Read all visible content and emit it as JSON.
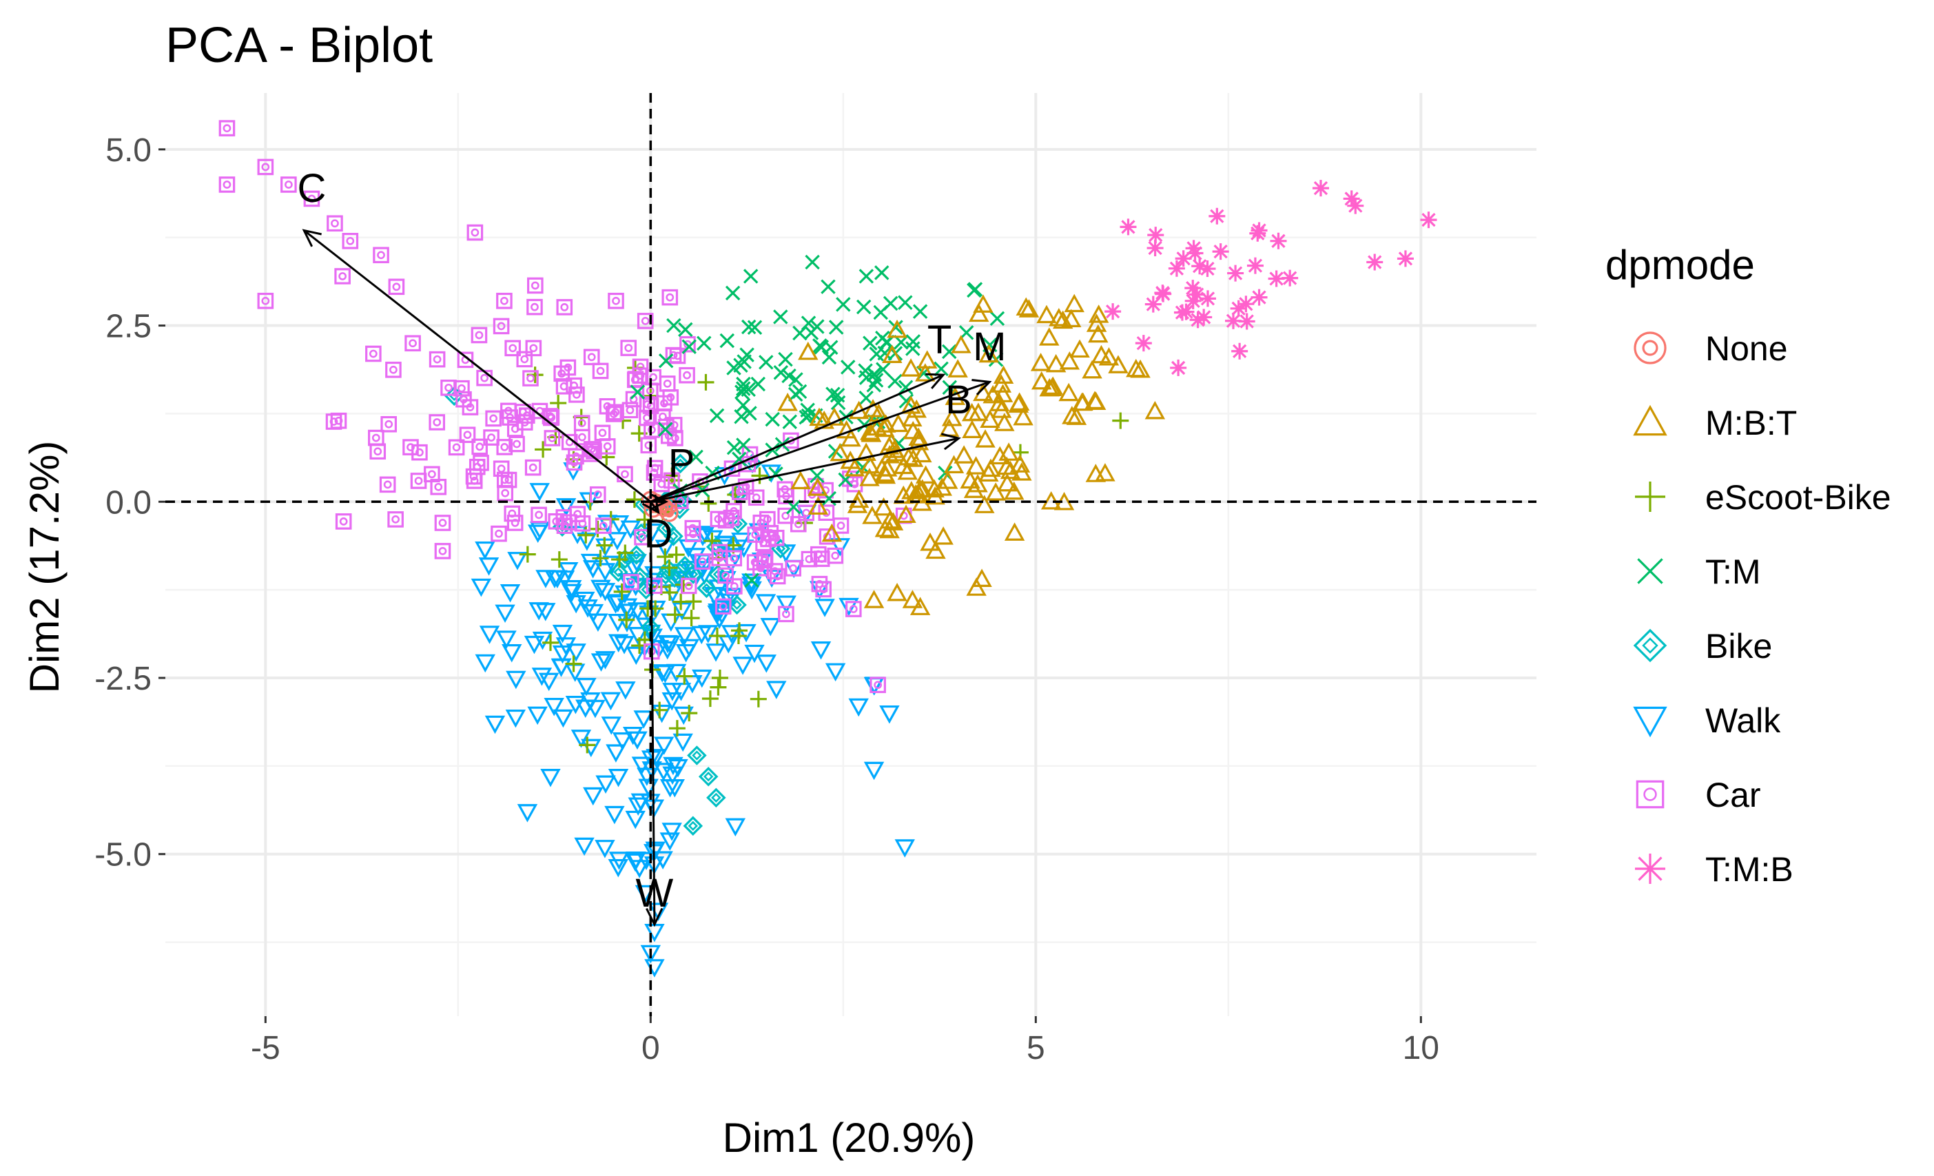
{
  "chart_data": {
    "type": "scatter",
    "subtype": "pca-biplot",
    "title": "PCA - Biplot",
    "xlabel": "Dim1 (20.9%)",
    "ylabel": "Dim2 (17.2%)",
    "xlim": [
      -6.3,
      11.5
    ],
    "ylim": [
      -7.3,
      5.8
    ],
    "xticks": [
      -5,
      0,
      5,
      10
    ],
    "xtick_labels": [
      "-5",
      "0",
      "5",
      "10"
    ],
    "yticks": [
      5.0,
      2.5,
      0.0,
      -2.5,
      -5.0
    ],
    "ytick_labels": [
      "5.0",
      "2.5",
      "0.0",
      "-2.5",
      "-5.0"
    ],
    "grid": true,
    "reference_lines": {
      "x": 0,
      "y": 0,
      "style": "dashed"
    },
    "legend": {
      "title": "dpmode",
      "position": "right",
      "entries": [
        {
          "label": "None",
          "color": "#F8766D",
          "shape": "circle-plus"
        },
        {
          "label": "M:B:T",
          "color": "#CD9600",
          "shape": "triangle"
        },
        {
          "label": "eScoot-Bike",
          "color": "#7CAE00",
          "shape": "plus"
        },
        {
          "label": "T:M",
          "color": "#00BE67",
          "shape": "cross"
        },
        {
          "label": "Bike",
          "color": "#00BFC4",
          "shape": "diamond"
        },
        {
          "label": "Walk",
          "color": "#00A9FF",
          "shape": "triangle-down"
        },
        {
          "label": "Car",
          "color": "#E76BF3",
          "shape": "square"
        },
        {
          "label": "T:M:B",
          "color": "#FF61CC",
          "shape": "asterisk"
        }
      ]
    },
    "loadings": [
      {
        "label": "C",
        "x": -4.5,
        "y": 3.85,
        "lx": -4.4,
        "ly": 4.45
      },
      {
        "label": "T",
        "x": 3.8,
        "y": 1.8,
        "lx": 3.75,
        "ly": 2.3
      },
      {
        "label": "M",
        "x": 4.4,
        "y": 1.7,
        "lx": 4.4,
        "ly": 2.2
      },
      {
        "label": "B",
        "x": 4.0,
        "y": 0.9,
        "lx": 4.0,
        "ly": 1.45
      },
      {
        "label": "P",
        "x": 0.2,
        "y": 0.0,
        "lx": 0.4,
        "ly": 0.55
      },
      {
        "label": "D",
        "x": 0.1,
        "y": -0.15,
        "lx": 0.1,
        "ly": -0.45
      },
      {
        "label": "W",
        "x": 0.05,
        "y": -6.0,
        "lx": 0.05,
        "ly": -5.55
      }
    ],
    "groups": [
      {
        "label": "None",
        "clusters": [
          {
            "cx": 0.1,
            "cy": -0.1,
            "sx": 0.08,
            "sy": 0.08,
            "n": 6
          }
        ],
        "points": []
      },
      {
        "label": "M:B:T",
        "clusters": [
          {
            "cx": 3.2,
            "cy": 0.5,
            "sx": 0.6,
            "sy": 0.6,
            "n": 60
          },
          {
            "cx": 4.4,
            "cy": 1.2,
            "sx": 0.9,
            "sy": 0.85,
            "n": 70
          },
          {
            "cx": 5.2,
            "cy": 2.1,
            "sx": 0.6,
            "sy": 0.5,
            "n": 20
          }
        ],
        "points": [
          [
            3.5,
            -1.5
          ],
          [
            3.4,
            -1.4
          ],
          [
            3.7,
            -0.7
          ],
          [
            4.3,
            -1.1
          ],
          [
            5.2,
            0.0
          ],
          [
            5.9,
            0.4
          ],
          [
            5.6,
            1.4
          ],
          [
            3.8,
            -0.5
          ],
          [
            5.5,
            2.8
          ],
          [
            5.3,
            2.6
          ],
          [
            2.9,
            -1.4
          ],
          [
            3.2,
            -1.3
          ]
        ]
      },
      {
        "label": "eScoot-Bike",
        "clusters": [
          {
            "cx": 0.0,
            "cy": -0.4,
            "sx": 0.8,
            "sy": 0.9,
            "n": 35
          },
          {
            "cx": 0.5,
            "cy": -1.9,
            "sx": 0.4,
            "sy": 0.5,
            "n": 18
          }
        ],
        "points": [
          [
            -1.5,
            1.8
          ],
          [
            -1.2,
            1.4
          ],
          [
            -0.9,
            1.2
          ],
          [
            -1.0,
            0.6
          ],
          [
            -1.3,
            -2.0
          ],
          [
            -1.0,
            -2.3
          ],
          [
            6.1,
            1.15
          ],
          [
            4.8,
            0.7
          ],
          [
            2.0,
            -0.3
          ],
          [
            1.4,
            -2.8
          ],
          [
            0.9,
            -2.5
          ],
          [
            0.5,
            -3.0
          ],
          [
            1.1,
            0.1
          ],
          [
            -0.2,
            1.9
          ],
          [
            0.0,
            1.5
          ]
        ]
      },
      {
        "label": "T:M",
        "clusters": [
          {
            "cx": 1.8,
            "cy": 1.5,
            "sx": 0.85,
            "sy": 0.65,
            "n": 75
          },
          {
            "cx": 3.0,
            "cy": 2.0,
            "sx": 0.6,
            "sy": 0.5,
            "n": 30
          }
        ],
        "points": [
          [
            2.1,
            3.4
          ],
          [
            1.3,
            3.2
          ],
          [
            2.8,
            3.2
          ],
          [
            3.0,
            3.25
          ],
          [
            4.2,
            3.0
          ],
          [
            4.5,
            2.6
          ],
          [
            0.3,
            2.5
          ],
          [
            0.5,
            2.2
          ],
          [
            0.2,
            2.0
          ],
          [
            2.5,
            2.8
          ],
          [
            3.5,
            2.7
          ],
          [
            4.1,
            2.4
          ]
        ]
      },
      {
        "label": "Bike",
        "clusters": [
          {
            "cx": 0.3,
            "cy": -0.5,
            "sx": 0.5,
            "sy": 0.6,
            "n": 30
          }
        ],
        "points": [
          [
            0.6,
            -3.6
          ],
          [
            0.75,
            -3.9
          ],
          [
            0.55,
            -4.6
          ],
          [
            0.85,
            -4.2
          ],
          [
            -2.55,
            1.5
          ]
        ]
      },
      {
        "label": "Walk",
        "clusters": [
          {
            "cx": -0.5,
            "cy": -1.8,
            "sx": 0.8,
            "sy": 0.9,
            "n": 120
          },
          {
            "cx": -0.1,
            "cy": -4.2,
            "sx": 0.35,
            "sy": 0.8,
            "n": 40
          },
          {
            "cx": 1.0,
            "cy": -1.2,
            "sx": 0.7,
            "sy": 0.7,
            "n": 60
          }
        ],
        "points": [
          [
            -1.6,
            -4.4
          ],
          [
            -1.3,
            -3.9
          ],
          [
            2.4,
            -2.4
          ],
          [
            2.9,
            -2.6
          ],
          [
            2.7,
            -2.9
          ],
          [
            3.1,
            -3.0
          ],
          [
            2.9,
            -3.8
          ],
          [
            3.3,
            -4.9
          ],
          [
            1.1,
            -4.6
          ],
          [
            -2.1,
            -0.9
          ],
          [
            -2.2,
            -1.2
          ],
          [
            0.0,
            -6.4
          ],
          [
            0.05,
            -6.1
          ],
          [
            -0.2,
            -5.1
          ],
          [
            0.1,
            -5.8
          ],
          [
            0.05,
            -6.6
          ]
        ]
      },
      {
        "label": "Car",
        "clusters": [
          {
            "cx": -1.8,
            "cy": 1.2,
            "sx": 1.1,
            "sy": 0.8,
            "n": 70
          },
          {
            "cx": 0.0,
            "cy": 1.3,
            "sx": 0.3,
            "sy": 0.6,
            "n": 25
          },
          {
            "cx": 1.6,
            "cy": -0.6,
            "sx": 0.7,
            "sy": 0.6,
            "n": 60
          },
          {
            "cx": -1.0,
            "cy": 0.4,
            "sx": 0.9,
            "sy": 0.5,
            "n": 30
          }
        ],
        "points": [
          [
            -5.5,
            5.3
          ],
          [
            -5.5,
            4.5
          ],
          [
            -5.0,
            4.75
          ],
          [
            -4.7,
            4.5
          ],
          [
            -4.4,
            4.3
          ],
          [
            -4.1,
            3.95
          ],
          [
            -3.9,
            3.7
          ],
          [
            -3.5,
            3.5
          ],
          [
            -3.3,
            3.05
          ],
          [
            -3.6,
            2.1
          ],
          [
            -3.4,
            1.1
          ],
          [
            -3.0,
            0.7
          ],
          [
            -2.7,
            -0.3
          ],
          [
            -2.7,
            -0.7
          ],
          [
            -5.0,
            2.85
          ],
          [
            -4.0,
            3.2
          ],
          [
            -1.9,
            2.85
          ],
          [
            -0.45,
            2.85
          ],
          [
            0.25,
            2.9
          ],
          [
            2.95,
            -2.6
          ]
        ]
      },
      {
        "label": "T:M:B",
        "clusters": [
          {
            "cx": 7.0,
            "cy": 3.0,
            "sx": 0.55,
            "sy": 0.45,
            "n": 28
          }
        ],
        "points": [
          [
            8.7,
            4.45
          ],
          [
            9.1,
            4.3
          ],
          [
            9.15,
            4.2
          ],
          [
            10.1,
            4.0
          ],
          [
            9.4,
            3.4
          ],
          [
            9.8,
            3.45
          ],
          [
            6.2,
            3.9
          ],
          [
            6.55,
            3.6
          ],
          [
            7.4,
            3.55
          ],
          [
            7.9,
            3.85
          ],
          [
            8.15,
            3.7
          ],
          [
            7.85,
            3.35
          ],
          [
            7.9,
            2.9
          ],
          [
            6.4,
            2.25
          ],
          [
            6.85,
            1.9
          ],
          [
            6.0,
            2.7
          ]
        ]
      }
    ]
  }
}
